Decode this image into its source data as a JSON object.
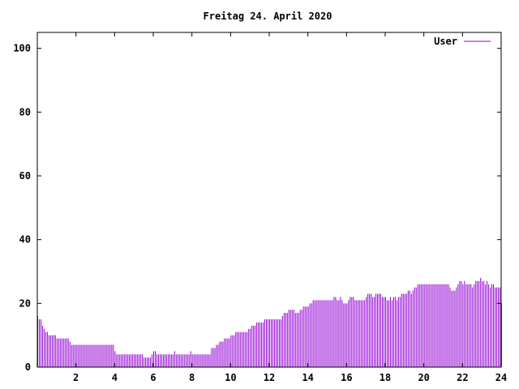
{
  "chart_data": {
    "type": "bar",
    "title": "Freitag 24. April 2020",
    "xlabel": "",
    "ylabel": "",
    "xlim": [
      0,
      24
    ],
    "ylim": [
      0,
      105
    ],
    "x_ticks": [
      2,
      4,
      6,
      8,
      10,
      12,
      14,
      16,
      18,
      20,
      22,
      24
    ],
    "y_ticks": [
      0,
      20,
      40,
      60,
      80,
      100
    ],
    "grid": false,
    "legend_position": "top-right",
    "interval_minutes": 5,
    "series": [
      {
        "name": "User",
        "color": "#9400d3",
        "values": [
          16,
          15,
          15,
          13,
          12,
          11,
          11,
          10,
          10,
          10,
          10,
          10,
          9,
          9,
          9,
          9,
          9,
          9,
          9,
          9,
          8,
          7,
          7,
          7,
          7,
          7,
          7,
          7,
          7,
          7,
          7,
          7,
          7,
          7,
          7,
          7,
          7,
          7,
          7,
          7,
          7,
          7,
          7,
          7,
          7,
          7,
          7,
          7,
          5,
          4,
          4,
          4,
          4,
          4,
          4,
          4,
          4,
          4,
          4,
          4,
          4,
          4,
          4,
          4,
          4,
          4,
          3,
          3,
          3,
          3,
          3,
          4,
          5,
          5,
          4,
          4,
          4,
          4,
          4,
          4,
          4,
          4,
          4,
          4,
          4,
          5,
          4,
          4,
          4,
          4,
          4,
          4,
          4,
          4,
          4,
          5,
          4,
          4,
          4,
          4,
          4,
          4,
          4,
          4,
          4,
          4,
          4,
          4,
          6,
          6,
          6,
          7,
          7,
          8,
          8,
          8,
          9,
          9,
          9,
          9,
          10,
          10,
          10,
          11,
          11,
          11,
          11,
          11,
          11,
          11,
          11,
          12,
          12,
          13,
          13,
          13,
          14,
          14,
          14,
          14,
          14,
          15,
          15,
          15,
          15,
          15,
          15,
          15,
          15,
          15,
          15,
          15,
          16,
          17,
          17,
          17,
          18,
          18,
          18,
          18,
          17,
          17,
          17,
          18,
          18,
          19,
          19,
          19,
          19,
          20,
          20,
          21,
          21,
          21,
          21,
          21,
          21,
          21,
          21,
          21,
          21,
          21,
          21,
          21,
          22,
          22,
          21,
          21,
          22,
          21,
          20,
          20,
          20,
          21,
          22,
          22,
          22,
          21,
          21,
          21,
          21,
          21,
          21,
          21,
          22,
          23,
          23,
          23,
          22,
          22,
          23,
          23,
          23,
          23,
          22,
          22,
          22,
          21,
          21,
          22,
          21,
          22,
          22,
          21,
          22,
          22,
          23,
          23,
          23,
          23,
          24,
          24,
          23,
          24,
          25,
          25,
          26,
          26,
          26,
          26,
          26,
          26,
          26,
          26,
          26,
          26,
          26,
          26,
          26,
          26,
          26,
          26,
          26,
          26,
          26,
          26,
          25,
          24,
          24,
          24,
          25,
          26,
          27,
          27,
          26,
          27,
          26,
          26,
          26,
          26,
          25,
          26,
          27,
          27,
          27,
          28,
          27,
          27,
          26,
          27,
          26,
          25,
          26,
          26,
          25,
          25,
          25,
          25,
          20
        ]
      }
    ]
  }
}
